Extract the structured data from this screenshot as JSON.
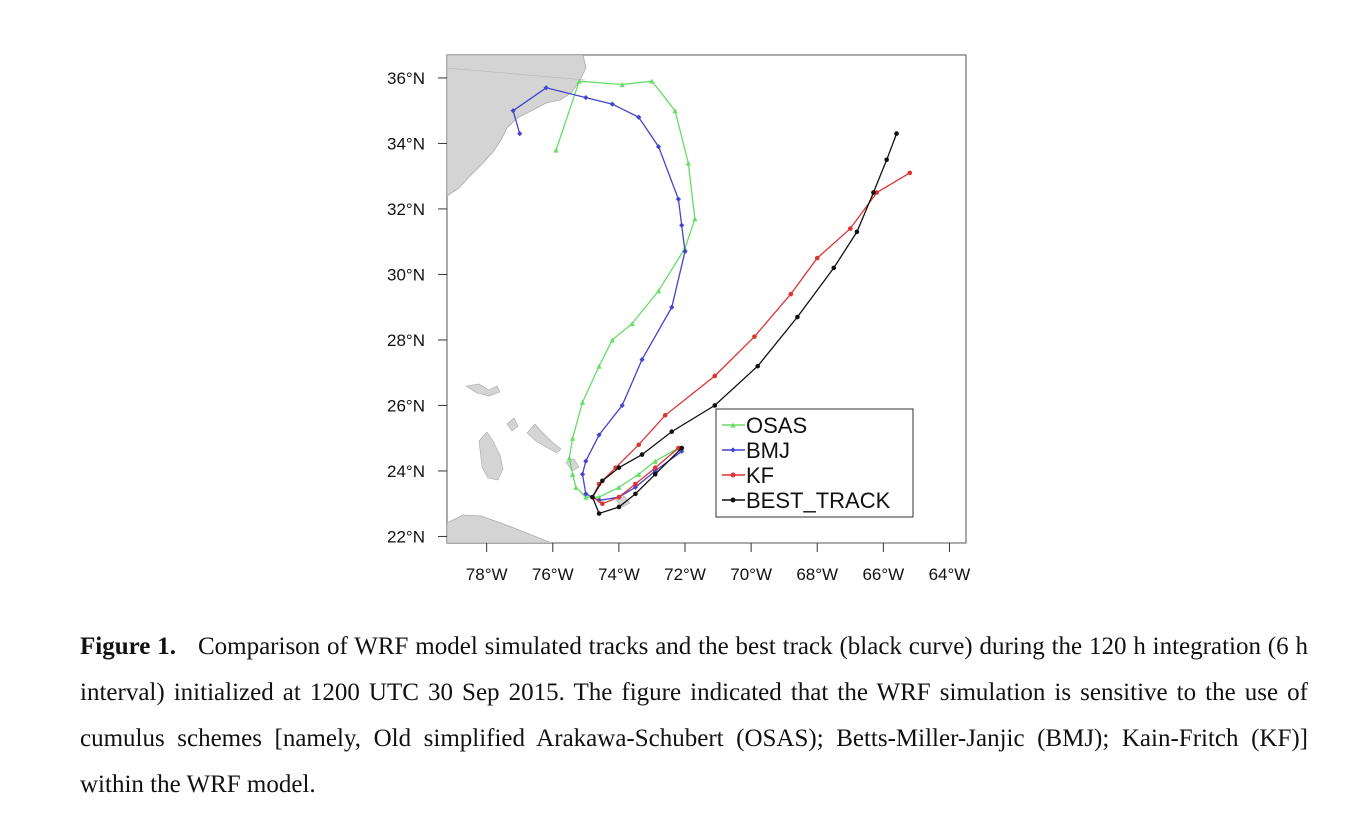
{
  "chart_data": {
    "type": "line",
    "title": "",
    "xlabel": "",
    "ylabel": "",
    "xlim": [
      -79.2,
      -63.5
    ],
    "ylim": [
      21.8,
      36.7
    ],
    "x_ticks": [
      -78,
      -76,
      -74,
      -72,
      -70,
      -68,
      -66,
      -64
    ],
    "x_tick_labels": [
      "78°W",
      "76°W",
      "74°W",
      "72°W",
      "70°W",
      "68°W",
      "66°W",
      "64°W"
    ],
    "y_ticks": [
      22,
      24,
      26,
      28,
      30,
      32,
      34,
      36
    ],
    "y_tick_labels": [
      "22°N",
      "24°N",
      "26°N",
      "28°N",
      "30°N",
      "32°N",
      "34°N",
      "36°N"
    ],
    "grid": false,
    "legend_position": "bottom-right",
    "series": [
      {
        "name": "OSAS",
        "color": "#66dd66",
        "x": [
          -72.2,
          -72.9,
          -73.4,
          -74.0,
          -74.6,
          -75.0,
          -75.3,
          -75.4,
          -75.5,
          -75.4,
          -75.1,
          -74.6,
          -74.2,
          -73.6,
          -72.8,
          -72.0,
          -71.7,
          -71.9,
          -72.3,
          -73.0,
          -73.9,
          -75.2,
          -75.9
        ],
        "y": [
          24.7,
          24.3,
          23.9,
          23.5,
          23.2,
          23.2,
          23.5,
          23.9,
          24.4,
          25.0,
          26.1,
          27.2,
          28.0,
          28.5,
          29.5,
          30.8,
          31.7,
          33.4,
          35.0,
          35.9,
          35.8,
          35.9,
          33.8
        ]
      },
      {
        "name": "BMJ",
        "color": "#4444cc",
        "x": [
          -72.1,
          -72.9,
          -73.5,
          -74.0,
          -74.6,
          -75.0,
          -75.1,
          -75.0,
          -74.6,
          -73.9,
          -73.3,
          -72.4,
          -72.0,
          -72.1,
          -72.2,
          -72.8,
          -73.4,
          -74.2,
          -75.0,
          -76.2,
          -77.2,
          -77.0
        ],
        "y": [
          24.6,
          24.0,
          23.5,
          23.2,
          23.1,
          23.3,
          23.9,
          24.3,
          25.1,
          26.0,
          27.4,
          29.0,
          30.7,
          31.5,
          32.3,
          33.9,
          34.8,
          35.2,
          35.4,
          35.7,
          35.0,
          34.3
        ]
      },
      {
        "name": "KF",
        "color": "#dd3333",
        "x": [
          -72.2,
          -72.9,
          -73.5,
          -74.0,
          -74.5,
          -74.8,
          -74.6,
          -74.1,
          -73.4,
          -72.6,
          -71.1,
          -69.9,
          -68.8,
          -68.0,
          -67.0,
          -66.2,
          -65.2
        ],
        "y": [
          24.7,
          24.1,
          23.6,
          23.2,
          23.0,
          23.2,
          23.6,
          24.1,
          24.8,
          25.7,
          26.9,
          28.1,
          29.4,
          30.5,
          31.4,
          32.5,
          33.1
        ]
      },
      {
        "name": "BEST_TRACK",
        "color": "#111111",
        "x": [
          -72.1,
          -72.9,
          -73.5,
          -74.0,
          -74.6,
          -74.8,
          -74.5,
          -74.0,
          -73.3,
          -72.4,
          -71.1,
          -69.8,
          -68.6,
          -67.5,
          -66.8,
          -66.3,
          -65.9,
          -65.6
        ],
        "y": [
          24.7,
          23.9,
          23.3,
          22.9,
          22.7,
          23.2,
          23.7,
          24.1,
          24.5,
          25.2,
          26.0,
          27.2,
          28.7,
          30.2,
          31.3,
          32.5,
          33.5,
          34.3
        ]
      }
    ]
  },
  "caption": {
    "label": "Figure 1.",
    "text": "Comparison of WRF model simulated tracks and the best track (black curve) during the 120 h integration (6 h interval) initialized at 1200 UTC 30 Sep 2015. The figure indicated that the WRF simulation is sensitive to the use of cumulus schemes [namely, Old simplified Arakawa-Schubert (OSAS); Betts-Miller-Janjic (BMJ); Kain-Fritch (KF)] within the WRF model."
  }
}
